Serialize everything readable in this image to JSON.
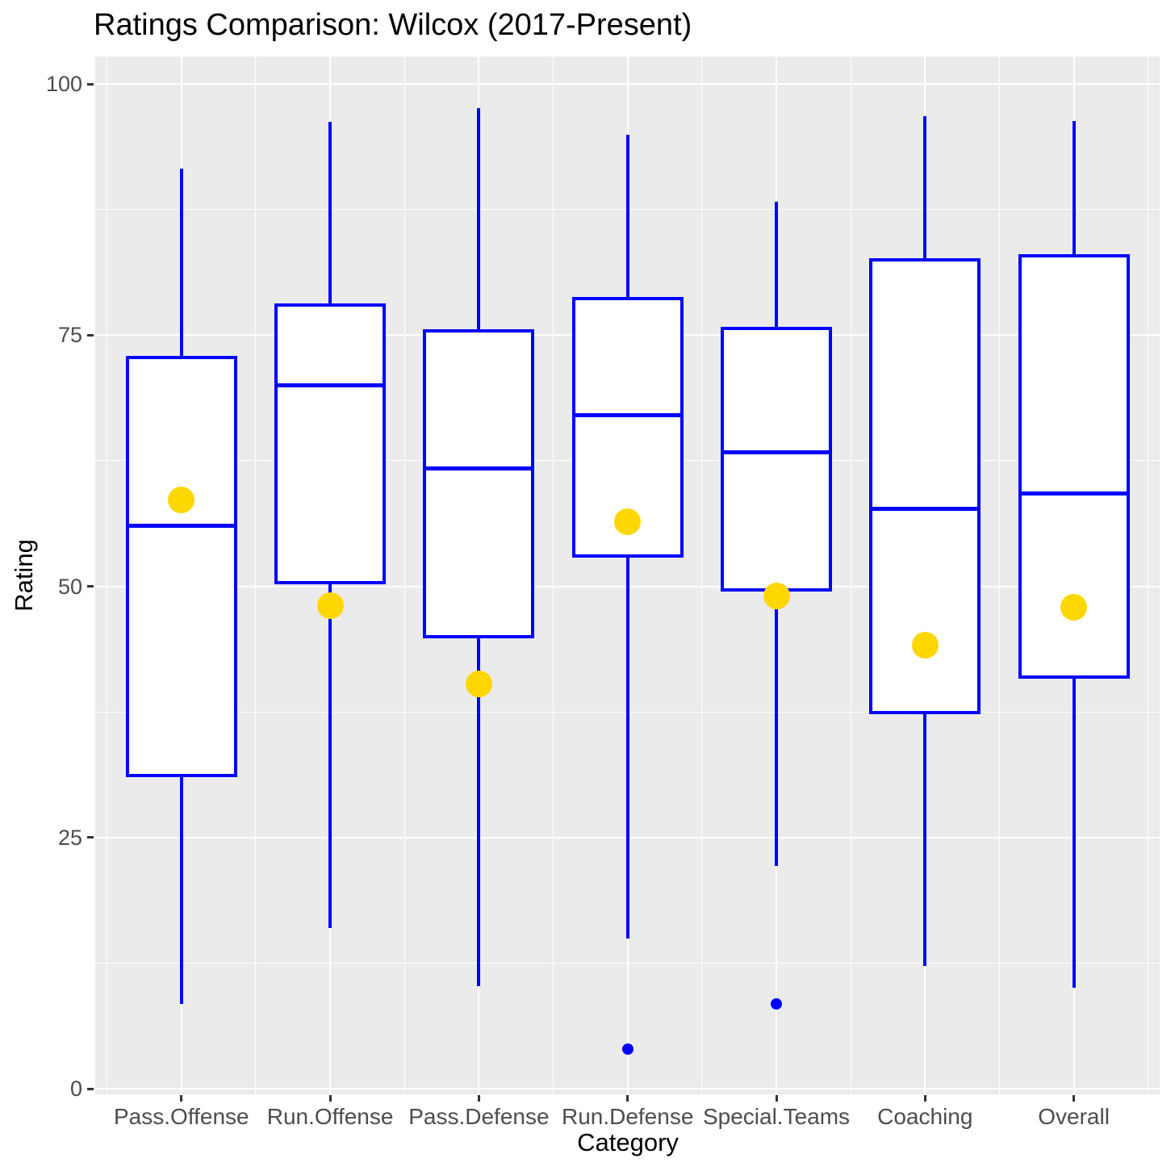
{
  "title": "Ratings Comparison: Wilcox (2017-Present)",
  "x_axis": {
    "label": "Category"
  },
  "y_axis": {
    "label": "Rating",
    "ticks": [
      0,
      25,
      50,
      75,
      100
    ],
    "tick_labels": [
      "0",
      "25",
      "50",
      "75",
      "100"
    ],
    "minor_ticks": [
      12.5,
      37.5,
      62.5,
      87.5
    ]
  },
  "colors": {
    "box_stroke": "#0000FF",
    "box_fill": "#FFFFFF",
    "mean_point": "#FFD700",
    "outlier_point": "#0000FF",
    "panel_background": "#EBEBEB",
    "gridline": "#FFFFFF",
    "axis_text": "#4D4D4D",
    "title_text": "#000000"
  },
  "chart_data": {
    "type": "boxplot",
    "title": "Ratings Comparison: Wilcox (2017-Present)",
    "xlabel": "Category",
    "ylabel": "Rating",
    "ylim": [
      0,
      100
    ],
    "grid": "on",
    "legend": "none",
    "categories": [
      "Pass.Offense",
      "Run.Offense",
      "Pass.Defense",
      "Run.Defense",
      "Special.Teams",
      "Coaching",
      "Overall"
    ],
    "boxes": [
      {
        "category": "Pass.Offense",
        "whisker_low": 8.4,
        "q1": 31.2,
        "median": 56.0,
        "q3": 72.8,
        "whisker_high": 91.6,
        "mean": 58.6,
        "outliers": []
      },
      {
        "category": "Run.Offense",
        "whisker_low": 16.0,
        "q1": 50.4,
        "median": 70.0,
        "q3": 78.0,
        "whisker_high": 96.2,
        "mean": 48.1,
        "outliers": []
      },
      {
        "category": "Pass.Defense",
        "whisker_low": 10.2,
        "q1": 45.0,
        "median": 61.7,
        "q3": 75.4,
        "whisker_high": 97.6,
        "mean": 40.3,
        "outliers": []
      },
      {
        "category": "Run.Defense",
        "whisker_low": 14.9,
        "q1": 53.0,
        "median": 67.0,
        "q3": 78.6,
        "whisker_high": 94.9,
        "mean": 56.4,
        "outliers": [
          3.9
        ]
      },
      {
        "category": "Special.Teams",
        "whisker_low": 22.2,
        "q1": 49.6,
        "median": 63.3,
        "q3": 75.7,
        "whisker_high": 88.3,
        "mean": 49.0,
        "outliers": [
          8.4
        ]
      },
      {
        "category": "Coaching",
        "whisker_low": 12.2,
        "q1": 37.4,
        "median": 57.7,
        "q3": 82.5,
        "whisker_high": 96.8,
        "mean": 44.1,
        "outliers": []
      },
      {
        "category": "Overall",
        "whisker_low": 10.0,
        "q1": 41.0,
        "median": 59.2,
        "q3": 82.9,
        "whisker_high": 96.3,
        "mean": 47.9,
        "outliers": []
      }
    ]
  }
}
